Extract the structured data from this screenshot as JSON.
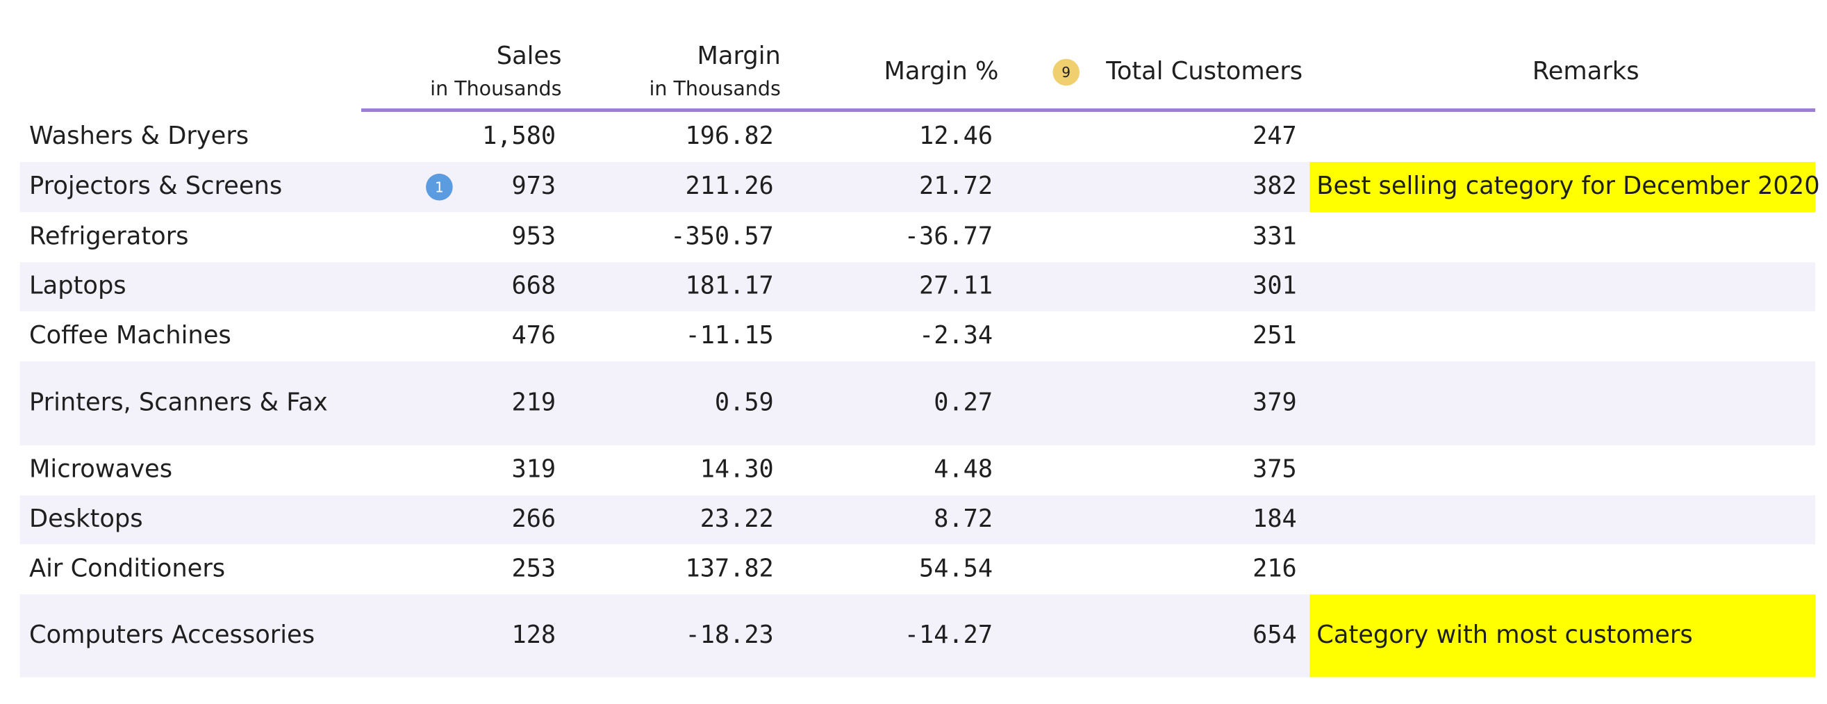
{
  "table": {
    "columns": [
      {
        "title": "Sales",
        "subtitle": "in Thousands"
      },
      {
        "title": "Margin",
        "subtitle": "in Thousands"
      },
      {
        "title": "Margin %"
      },
      {
        "title": "Total Customers",
        "badge": "9"
      },
      {
        "title": "Remarks"
      }
    ],
    "rows": [
      {
        "category": "Washers & Dryers",
        "cells": [
          "1,580",
          "196.82",
          "12.46",
          "247"
        ]
      },
      {
        "category": "Projectors & Screens",
        "badge": "1",
        "cells": [
          "973",
          "211.26",
          "21.72",
          "382"
        ],
        "remark": "Best selling category for December 2020"
      },
      {
        "category": "Refrigerators",
        "cells": [
          "953",
          "-350.57",
          "-36.77",
          "331"
        ]
      },
      {
        "category": "Laptops",
        "cells": [
          "668",
          "181.17",
          "27.11",
          "301"
        ]
      },
      {
        "category": "Coffee Machines",
        "cells": [
          "476",
          "-11.15",
          "-2.34",
          "251"
        ]
      },
      {
        "category": "Printers, Scanners & Fax",
        "cells": [
          "219",
          "0.59",
          "0.27",
          "379"
        ]
      },
      {
        "category": "Microwaves",
        "cells": [
          "319",
          "14.30",
          "4.48",
          "375"
        ]
      },
      {
        "category": "Desktops",
        "cells": [
          "266",
          "23.22",
          "8.72",
          "184"
        ]
      },
      {
        "category": "Air Conditioners",
        "cells": [
          "253",
          "137.82",
          "54.54",
          "216"
        ]
      },
      {
        "category": "Computers Accessories",
        "cells": [
          "128",
          "-18.23",
          "-14.27",
          "654"
        ],
        "remark": "Category with most customers"
      }
    ]
  }
}
